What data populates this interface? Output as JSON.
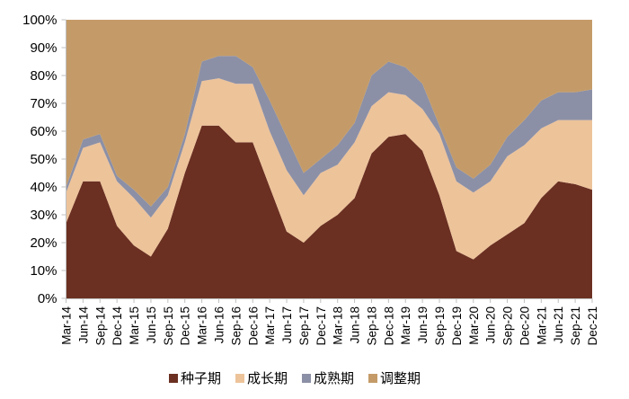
{
  "chart_data": {
    "type": "area",
    "stacked": true,
    "percent": true,
    "title": "",
    "xlabel": "",
    "ylabel": "",
    "ylim": [
      0,
      100
    ],
    "yticks": [
      "0%",
      "10%",
      "20%",
      "30%",
      "40%",
      "50%",
      "60%",
      "70%",
      "80%",
      "90%",
      "100%"
    ],
    "categories": [
      "Mar-14",
      "Jun-14",
      "Sep-14",
      "Dec-14",
      "Mar-15",
      "Jun-15",
      "Sep-15",
      "Dec-15",
      "Mar-16",
      "Jun-16",
      "Sep-16",
      "Dec-16",
      "Mar-17",
      "Jun-17",
      "Sep-17",
      "Dec-17",
      "Mar-18",
      "Jun-18",
      "Sep-18",
      "Dec-18",
      "Mar-19",
      "Jun-19",
      "Sep-19",
      "Dec-19",
      "Mar-20",
      "Jun-20",
      "Sep-20",
      "Dec-20",
      "Mar-21",
      "Jun-21",
      "Sep-21",
      "Dec-21"
    ],
    "series": [
      {
        "name": "种子期",
        "color": "#6B3022",
        "values": [
          27,
          42,
          42,
          26,
          19,
          15,
          25,
          45,
          62,
          62,
          56,
          56,
          40,
          24,
          20,
          26,
          30,
          36,
          52,
          58,
          59,
          53,
          37,
          17,
          14,
          19,
          23,
          27,
          36,
          42,
          41,
          39
        ]
      },
      {
        "name": "成长期",
        "color": "#EDC39A",
        "values": [
          11,
          12,
          14,
          16,
          17,
          14,
          12,
          11,
          16,
          17,
          21,
          21,
          20,
          22,
          17,
          19,
          18,
          20,
          17,
          16,
          14,
          15,
          22,
          25,
          24,
          23,
          28,
          28,
          25,
          22,
          23,
          25
        ]
      },
      {
        "name": "成熟期",
        "color": "#8C90A6",
        "values": [
          2,
          3,
          3,
          2,
          3,
          4,
          3,
          3,
          7,
          8,
          10,
          6,
          11,
          12,
          8,
          5,
          7,
          7,
          11,
          11,
          10,
          9,
          3,
          5,
          5,
          6,
          7,
          9,
          10,
          10,
          10,
          11
        ]
      },
      {
        "name": "调整期",
        "color": "#C49B68",
        "values": [
          60,
          43,
          41,
          56,
          61,
          67,
          60,
          41,
          15,
          13,
          13,
          17,
          29,
          42,
          55,
          50,
          45,
          37,
          20,
          15,
          17,
          23,
          38,
          53,
          57,
          52,
          42,
          36,
          29,
          26,
          26,
          25
        ]
      }
    ],
    "legend_position": "bottom",
    "grid": false
  },
  "legend": {
    "items": [
      {
        "label": "种子期",
        "color": "#6B3022"
      },
      {
        "label": "成长期",
        "color": "#EDC39A"
      },
      {
        "label": "成熟期",
        "color": "#8C90A6"
      },
      {
        "label": "调整期",
        "color": "#C49B68"
      }
    ]
  }
}
